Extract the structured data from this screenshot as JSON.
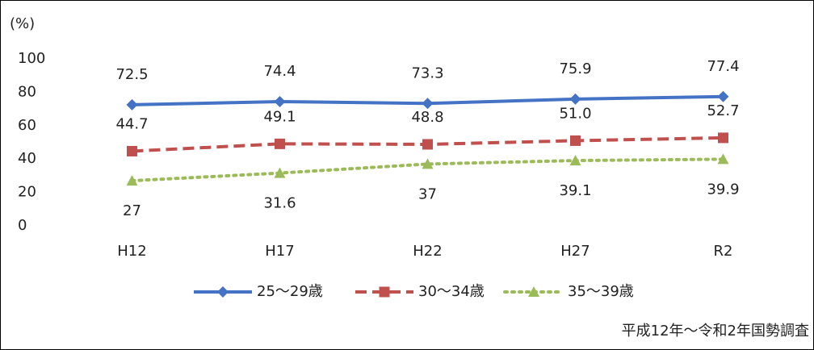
{
  "chart_data": {
    "type": "line",
    "y_label": "(%)",
    "categories": [
      "H12",
      "H17",
      "H22",
      "H27",
      "R2"
    ],
    "ylim": [
      0,
      100
    ],
    "yticks": [
      0,
      20,
      40,
      60,
      80,
      100
    ],
    "grid": false,
    "series": [
      {
        "name": "25～29歳",
        "color": "#4472c4",
        "dash": "solid",
        "marker": "diamond",
        "label_position": "above",
        "values": [
          72.5,
          74.4,
          73.3,
          75.9,
          77.4
        ]
      },
      {
        "name": "30～34歳",
        "color": "#c0504d",
        "dash": "dashed",
        "marker": "square",
        "label_position": "above",
        "values": [
          44.7,
          49.1,
          48.8,
          51.0,
          52.7
        ],
        "value_labels": [
          "44.7",
          "49.1",
          "48.8",
          "51.0",
          "52.7"
        ]
      },
      {
        "name": "35～39歳",
        "color": "#9bbb59",
        "dash": "dotted",
        "marker": "triangle",
        "label_position": "below",
        "values": [
          27,
          31.6,
          37,
          39.1,
          39.9
        ]
      }
    ],
    "source": "平成12年～令和2年国勢調査"
  }
}
